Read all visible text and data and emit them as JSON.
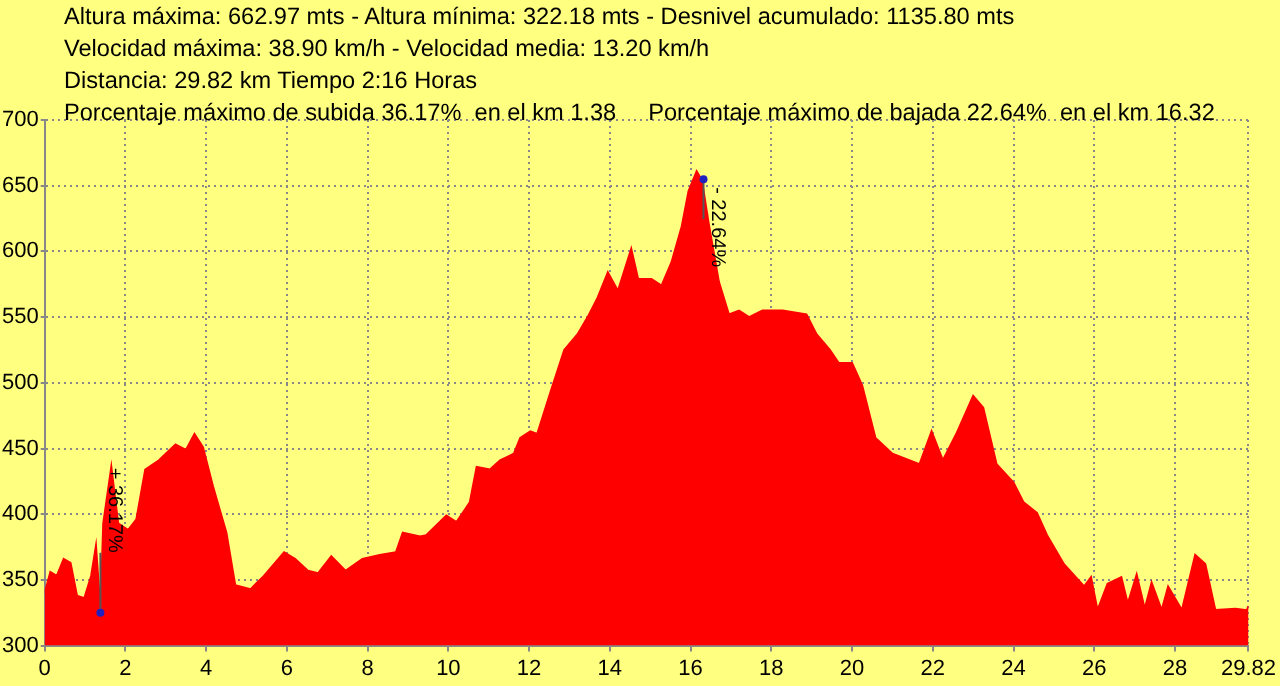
{
  "chart_data": {
    "type": "area",
    "title": "Altura máxima: 662.97 mts - Altura mínima: 322.18 mts - Desnivel acumulado: 1135.80 mts",
    "subtitle": "Velocidad máxima: 38.90 km/h - Velocidad media: 13.20 km/h",
    "annotations": [
      "Distancia: 29.82 km Tiempo 2:16 Horas",
      "Porcentaje máximo de subida 36.17%  en el km 1.38",
      "Porcentaje máximo de bajada 22.64%  en el km 16.32",
      {
        "text": "+ 36.17%",
        "x": 1.38,
        "y": 325
      },
      {
        "text": "- 22.64%",
        "x": 16.32,
        "y": 655
      }
    ],
    "x": [
      0,
      0.14,
      0.3,
      0.47,
      0.64,
      0.8,
      0.98,
      1.15,
      1.27,
      1.35,
      1.38,
      1.45,
      1.65,
      1.82,
      2.07,
      2.27,
      2.49,
      2.83,
      3.24,
      3.5,
      3.71,
      3.92,
      4.17,
      4.5,
      4.72,
      5.1,
      5.43,
      5.93,
      6.2,
      6.52,
      6.77,
      7.1,
      7.45,
      7.87,
      8.3,
      8.7,
      8.87,
      9.3,
      9.45,
      9.95,
      10.2,
      10.53,
      10.7,
      11.03,
      11.28,
      11.62,
      11.78,
      12.03,
      12.2,
      12.53,
      12.87,
      13.2,
      13.45,
      13.7,
      13.95,
      14.2,
      14.53,
      14.7,
      15.03,
      15.28,
      15.53,
      15.78,
      15.95,
      16.15,
      16.28,
      16.45,
      16.7,
      16.95,
      17.2,
      17.45,
      17.78,
      18.28,
      18.87,
      19.12,
      19.45,
      19.67,
      20.0,
      20.25,
      20.58,
      21.0,
      21.67,
      21.97,
      22.25,
      22.58,
      23.0,
      23.25,
      23.58,
      24.0,
      24.25,
      24.58,
      24.83,
      25.25,
      25.75,
      25.92,
      26.08,
      26.33,
      26.67,
      26.83,
      27.05,
      27.25,
      27.42,
      27.67,
      27.83,
      28.17,
      28.5,
      28.75,
      29.0,
      29.5,
      29.78,
      29.82
    ],
    "values": [
      340,
      356,
      353,
      366,
      363,
      338,
      336,
      353,
      376,
      341,
      325,
      393,
      436,
      393,
      388,
      396,
      434,
      441,
      453,
      449,
      461,
      451,
      421,
      386,
      346,
      343,
      353,
      371,
      366,
      357,
      355,
      368,
      357,
      366,
      369,
      371,
      386,
      383,
      384,
      399,
      394,
      409,
      436,
      434,
      441,
      446,
      458,
      463,
      461,
      493,
      525,
      537,
      550,
      565,
      584,
      570,
      602,
      579,
      579,
      574,
      592,
      619,
      646,
      661,
      654,
      621,
      577,
      552,
      555,
      550,
      555,
      555,
      552,
      537,
      525,
      515,
      515,
      498,
      458,
      446,
      438,
      463,
      441,
      461,
      490,
      481,
      438,
      424,
      409,
      401,
      384,
      362,
      345,
      352,
      327,
      347,
      352,
      332,
      354,
      328,
      348,
      327,
      345,
      327,
      369,
      362,
      327,
      328,
      327,
      330
    ],
    "color": "#ff0000",
    "xlim": [
      0,
      29.82
    ],
    "xticks": [
      0,
      2,
      4,
      6,
      8,
      10,
      12,
      14,
      16,
      18,
      20,
      22,
      24,
      26,
      28,
      29.82
    ],
    "ylim": [
      300,
      700
    ],
    "yticks": [
      300,
      350,
      400,
      450,
      500,
      550,
      600,
      650,
      700
    ],
    "grid": true,
    "legend": false
  }
}
